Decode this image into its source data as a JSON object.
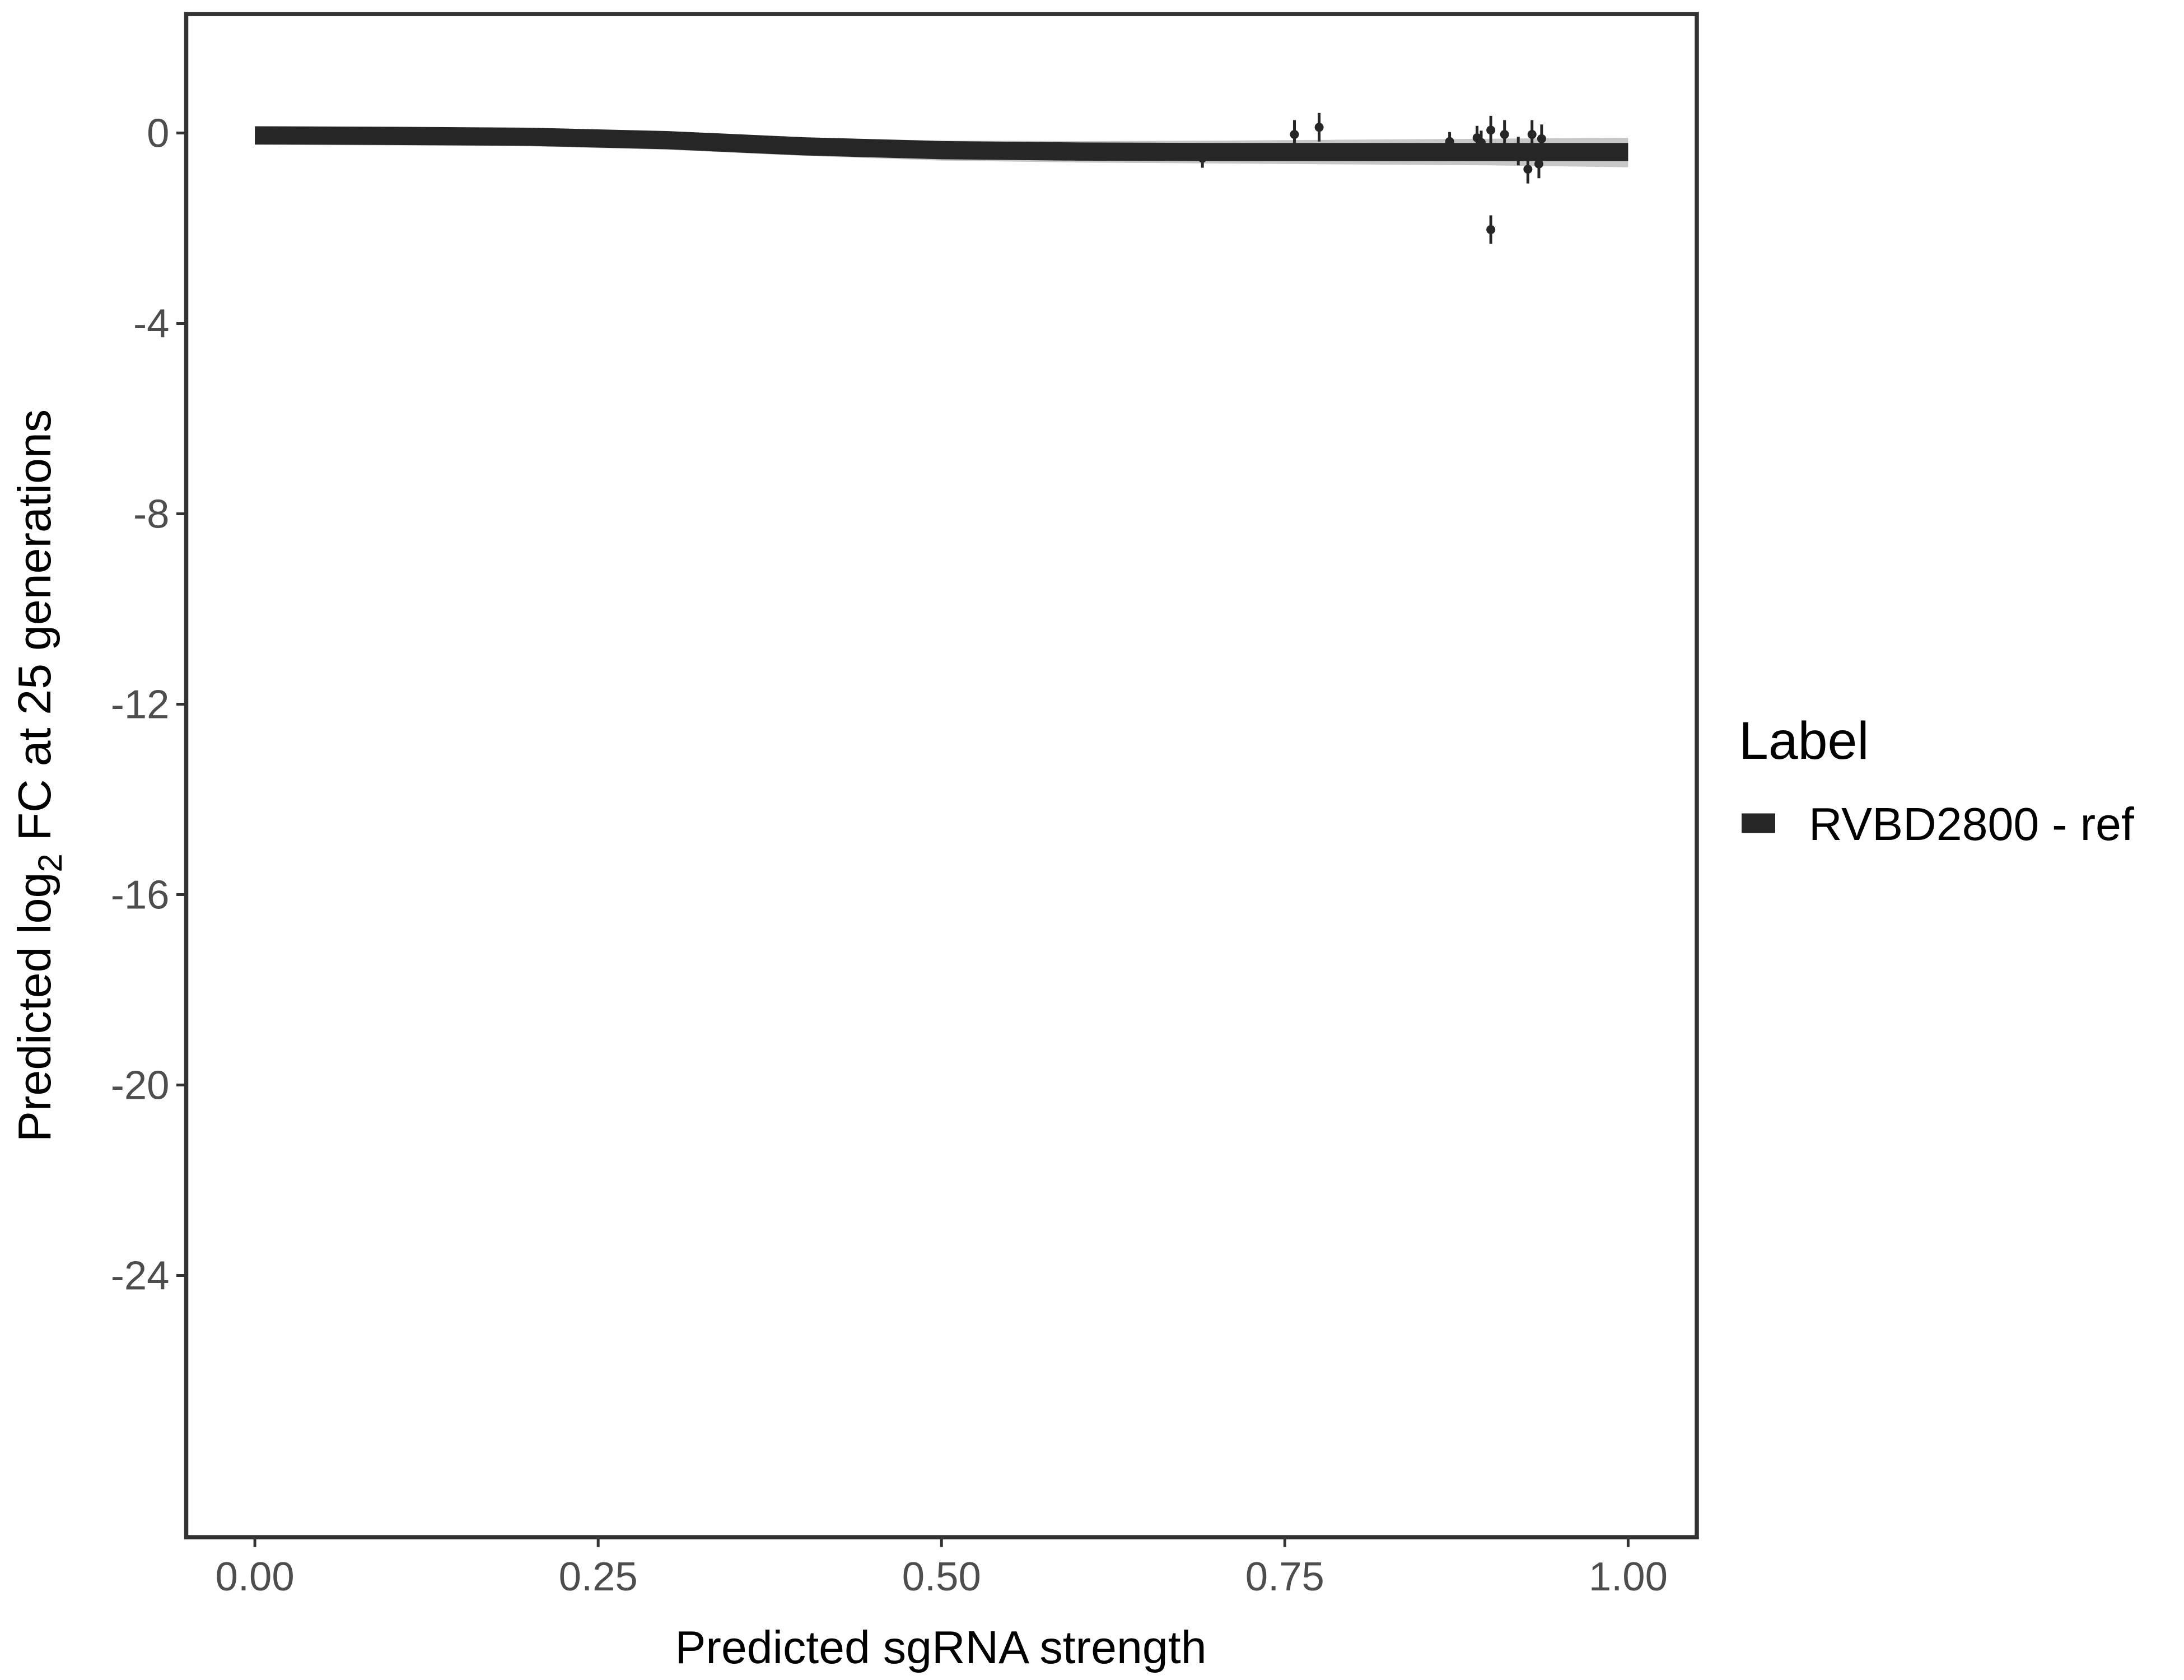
{
  "chart_data": {
    "type": "scatter",
    "xlabel": "Predicted sgRNA strength",
    "ylabel_parts": [
      "Predicted  log",
      "2",
      " FC at 25 generations"
    ],
    "legend_title": "Label",
    "legend": "right",
    "xlim": [
      -0.05,
      1.05
    ],
    "ylim": [
      -29.5,
      2.5
    ],
    "xticks": [
      {
        "value": 0,
        "label": "0.00"
      },
      {
        "value": 0.25,
        "label": "0.25"
      },
      {
        "value": 0.5,
        "label": "0.50"
      },
      {
        "value": 0.75,
        "label": "0.75"
      },
      {
        "value": 1,
        "label": "1.00"
      }
    ],
    "yticks": [
      0,
      -4,
      -8,
      -12,
      -16,
      -20,
      -24
    ],
    "series": [
      {
        "name": "RVBD2800 - ref",
        "color": "#262626",
        "x": [
          0.69,
          0.757,
          0.775,
          0.87,
          0.89,
          0.893,
          0.9,
          0.9,
          0.91,
          0.92,
          0.927,
          0.93,
          0.935,
          0.937
        ],
        "values": [
          -0.53,
          -0.03,
          0.12,
          -0.18,
          -0.1,
          -0.2,
          0.06,
          -2.03,
          -0.03,
          -0.38,
          -0.76,
          -0.03,
          -0.65,
          -0.12
        ],
        "errors": [
          0.2,
          0.3,
          0.3,
          0.2,
          0.25,
          0.25,
          0.3,
          0.3,
          0.3,
          0.3,
          0.3,
          0.3,
          0.3,
          0.3
        ]
      }
    ],
    "fit": {
      "x": [
        0,
        0.1,
        0.2,
        0.3,
        0.4,
        0.5,
        0.6,
        0.7,
        0.8,
        0.9,
        1
      ],
      "values": [
        -0.05,
        -0.06,
        -0.08,
        -0.15,
        -0.28,
        -0.36,
        -0.39,
        -0.4,
        -0.4,
        -0.4,
        -0.4
      ],
      "lower": [
        -0.25,
        -0.26,
        -0.28,
        -0.35,
        -0.48,
        -0.58,
        -0.62,
        -0.64,
        -0.66,
        -0.68,
        -0.72
      ],
      "upper": [
        0.1,
        0.09,
        0.08,
        0.02,
        -0.1,
        -0.16,
        -0.17,
        -0.16,
        -0.14,
        -0.12,
        -0.1
      ]
    }
  }
}
